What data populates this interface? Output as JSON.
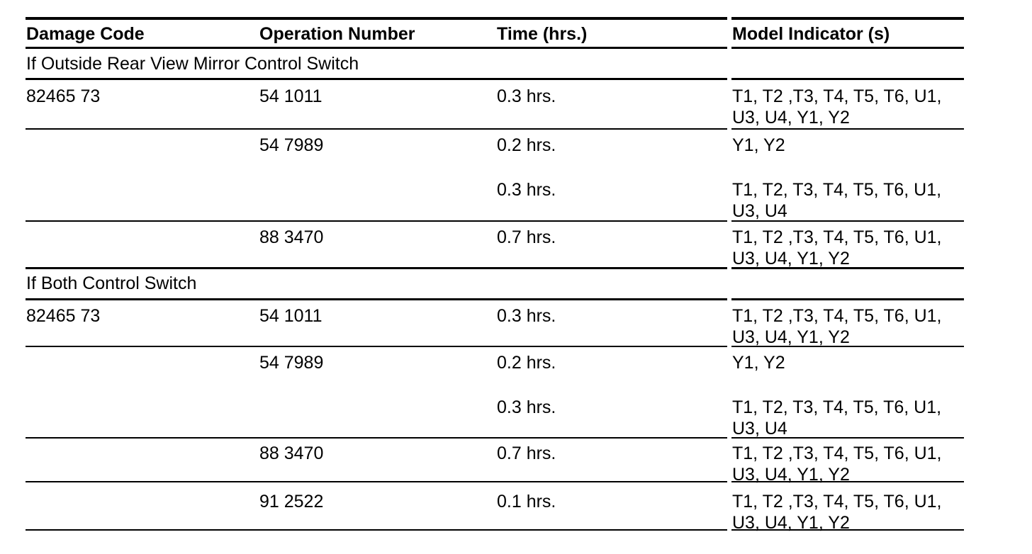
{
  "colors": {
    "text": "#000000",
    "background": "#ffffff",
    "rule": "#000000"
  },
  "table": {
    "columns": [
      {
        "label": "Damage Code"
      },
      {
        "label": "Operation Number"
      },
      {
        "label": "Time (hrs.)"
      },
      {
        "label": "Model Indicator (s)"
      }
    ],
    "sections": [
      {
        "title": "If Outside Rear View Mirror Control Switch",
        "rows": [
          {
            "damage_code": "82465 73",
            "operation_number": "54 1011",
            "time": "0.3 hrs.",
            "model_indicators": "T1, T2 ,T3, T4, T5, T6, U1, U3, U4, Y1, Y2"
          },
          {
            "damage_code": "",
            "operation_number": "54 7989",
            "time": "0.2 hrs.",
            "model_indicators": "Y1, Y2"
          },
          {
            "damage_code": "",
            "operation_number": "",
            "time": "0.3 hrs.",
            "model_indicators": "T1, T2, T3, T4, T5, T6, U1, U3, U4"
          },
          {
            "damage_code": "",
            "operation_number": "88 3470",
            "time": "0.7 hrs.",
            "model_indicators": "T1, T2 ,T3, T4, T5, T6, U1, U3, U4, Y1, Y2"
          }
        ]
      },
      {
        "title": "If Both Control Switch",
        "rows": [
          {
            "damage_code": "82465 73",
            "operation_number": "54 1011",
            "time": "0.3 hrs.",
            "model_indicators": "T1, T2 ,T3, T4, T5, T6, U1, U3, U4, Y1, Y2"
          },
          {
            "damage_code": "",
            "operation_number": "54 7989",
            "time": "0.2 hrs.",
            "model_indicators": "Y1, Y2"
          },
          {
            "damage_code": "",
            "operation_number": "",
            "time": "0.3 hrs.",
            "model_indicators": "T1, T2, T3, T4, T5, T6, U1, U3, U4"
          },
          {
            "damage_code": "",
            "operation_number": "88 3470",
            "time": "0.7 hrs.",
            "model_indicators": "T1, T2 ,T3, T4, T5, T6, U1, U3, U4, Y1, Y2"
          },
          {
            "damage_code": "",
            "operation_number": "91 2522",
            "time": "0.1 hrs.",
            "model_indicators": "T1, T2 ,T3, T4, T5, T6, U1, U3, U4, Y1, Y2"
          }
        ]
      }
    ]
  }
}
